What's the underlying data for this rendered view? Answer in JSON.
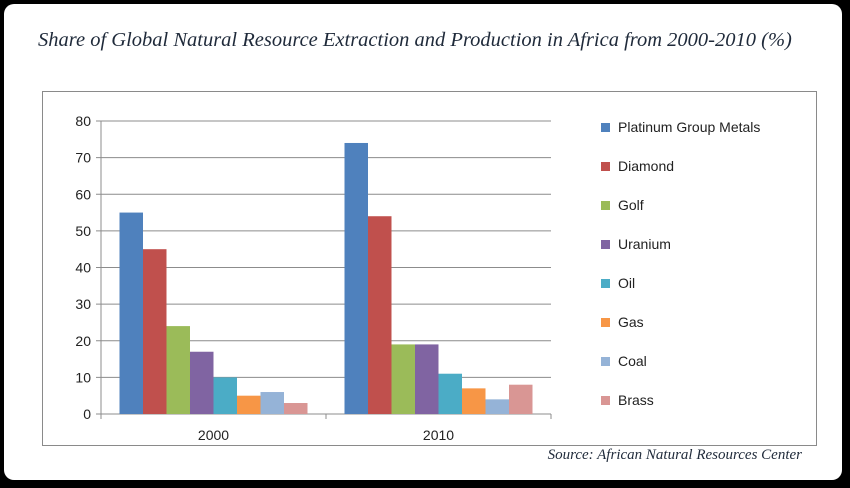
{
  "title": "Share of Global Natural Resource Extraction and Production in Africa from 2000-2010 (%)",
  "source": "Source: African Natural Resources Center",
  "chart_data": {
    "type": "bar",
    "title": "Share of Global Natural Resource Extraction and Production in Africa from 2000-2010 (%)",
    "xlabel": "",
    "ylabel": "",
    "categories": [
      "2000",
      "2010"
    ],
    "ylim": [
      0,
      80
    ],
    "yticks": [
      0,
      10,
      20,
      30,
      40,
      50,
      60,
      70,
      80
    ],
    "grid": true,
    "legend": "right",
    "series": [
      {
        "name": "Platinum Group Metals",
        "color": "#4f81bd",
        "values": [
          55,
          74
        ]
      },
      {
        "name": "Diamond",
        "color": "#c0504d",
        "values": [
          45,
          54
        ]
      },
      {
        "name": "Golf",
        "color": "#9bbb59",
        "values": [
          24,
          19
        ]
      },
      {
        "name": "Uranium",
        "color": "#8064a2",
        "values": [
          17,
          19
        ]
      },
      {
        "name": "Oil",
        "color": "#4bacc6",
        "values": [
          10,
          11
        ]
      },
      {
        "name": "Gas",
        "color": "#f79646",
        "values": [
          5,
          7
        ]
      },
      {
        "name": "Coal",
        "color": "#95b3d7",
        "values": [
          6,
          4
        ]
      },
      {
        "name": "Brass",
        "color": "#d99694",
        "values": [
          3,
          8
        ]
      }
    ]
  }
}
